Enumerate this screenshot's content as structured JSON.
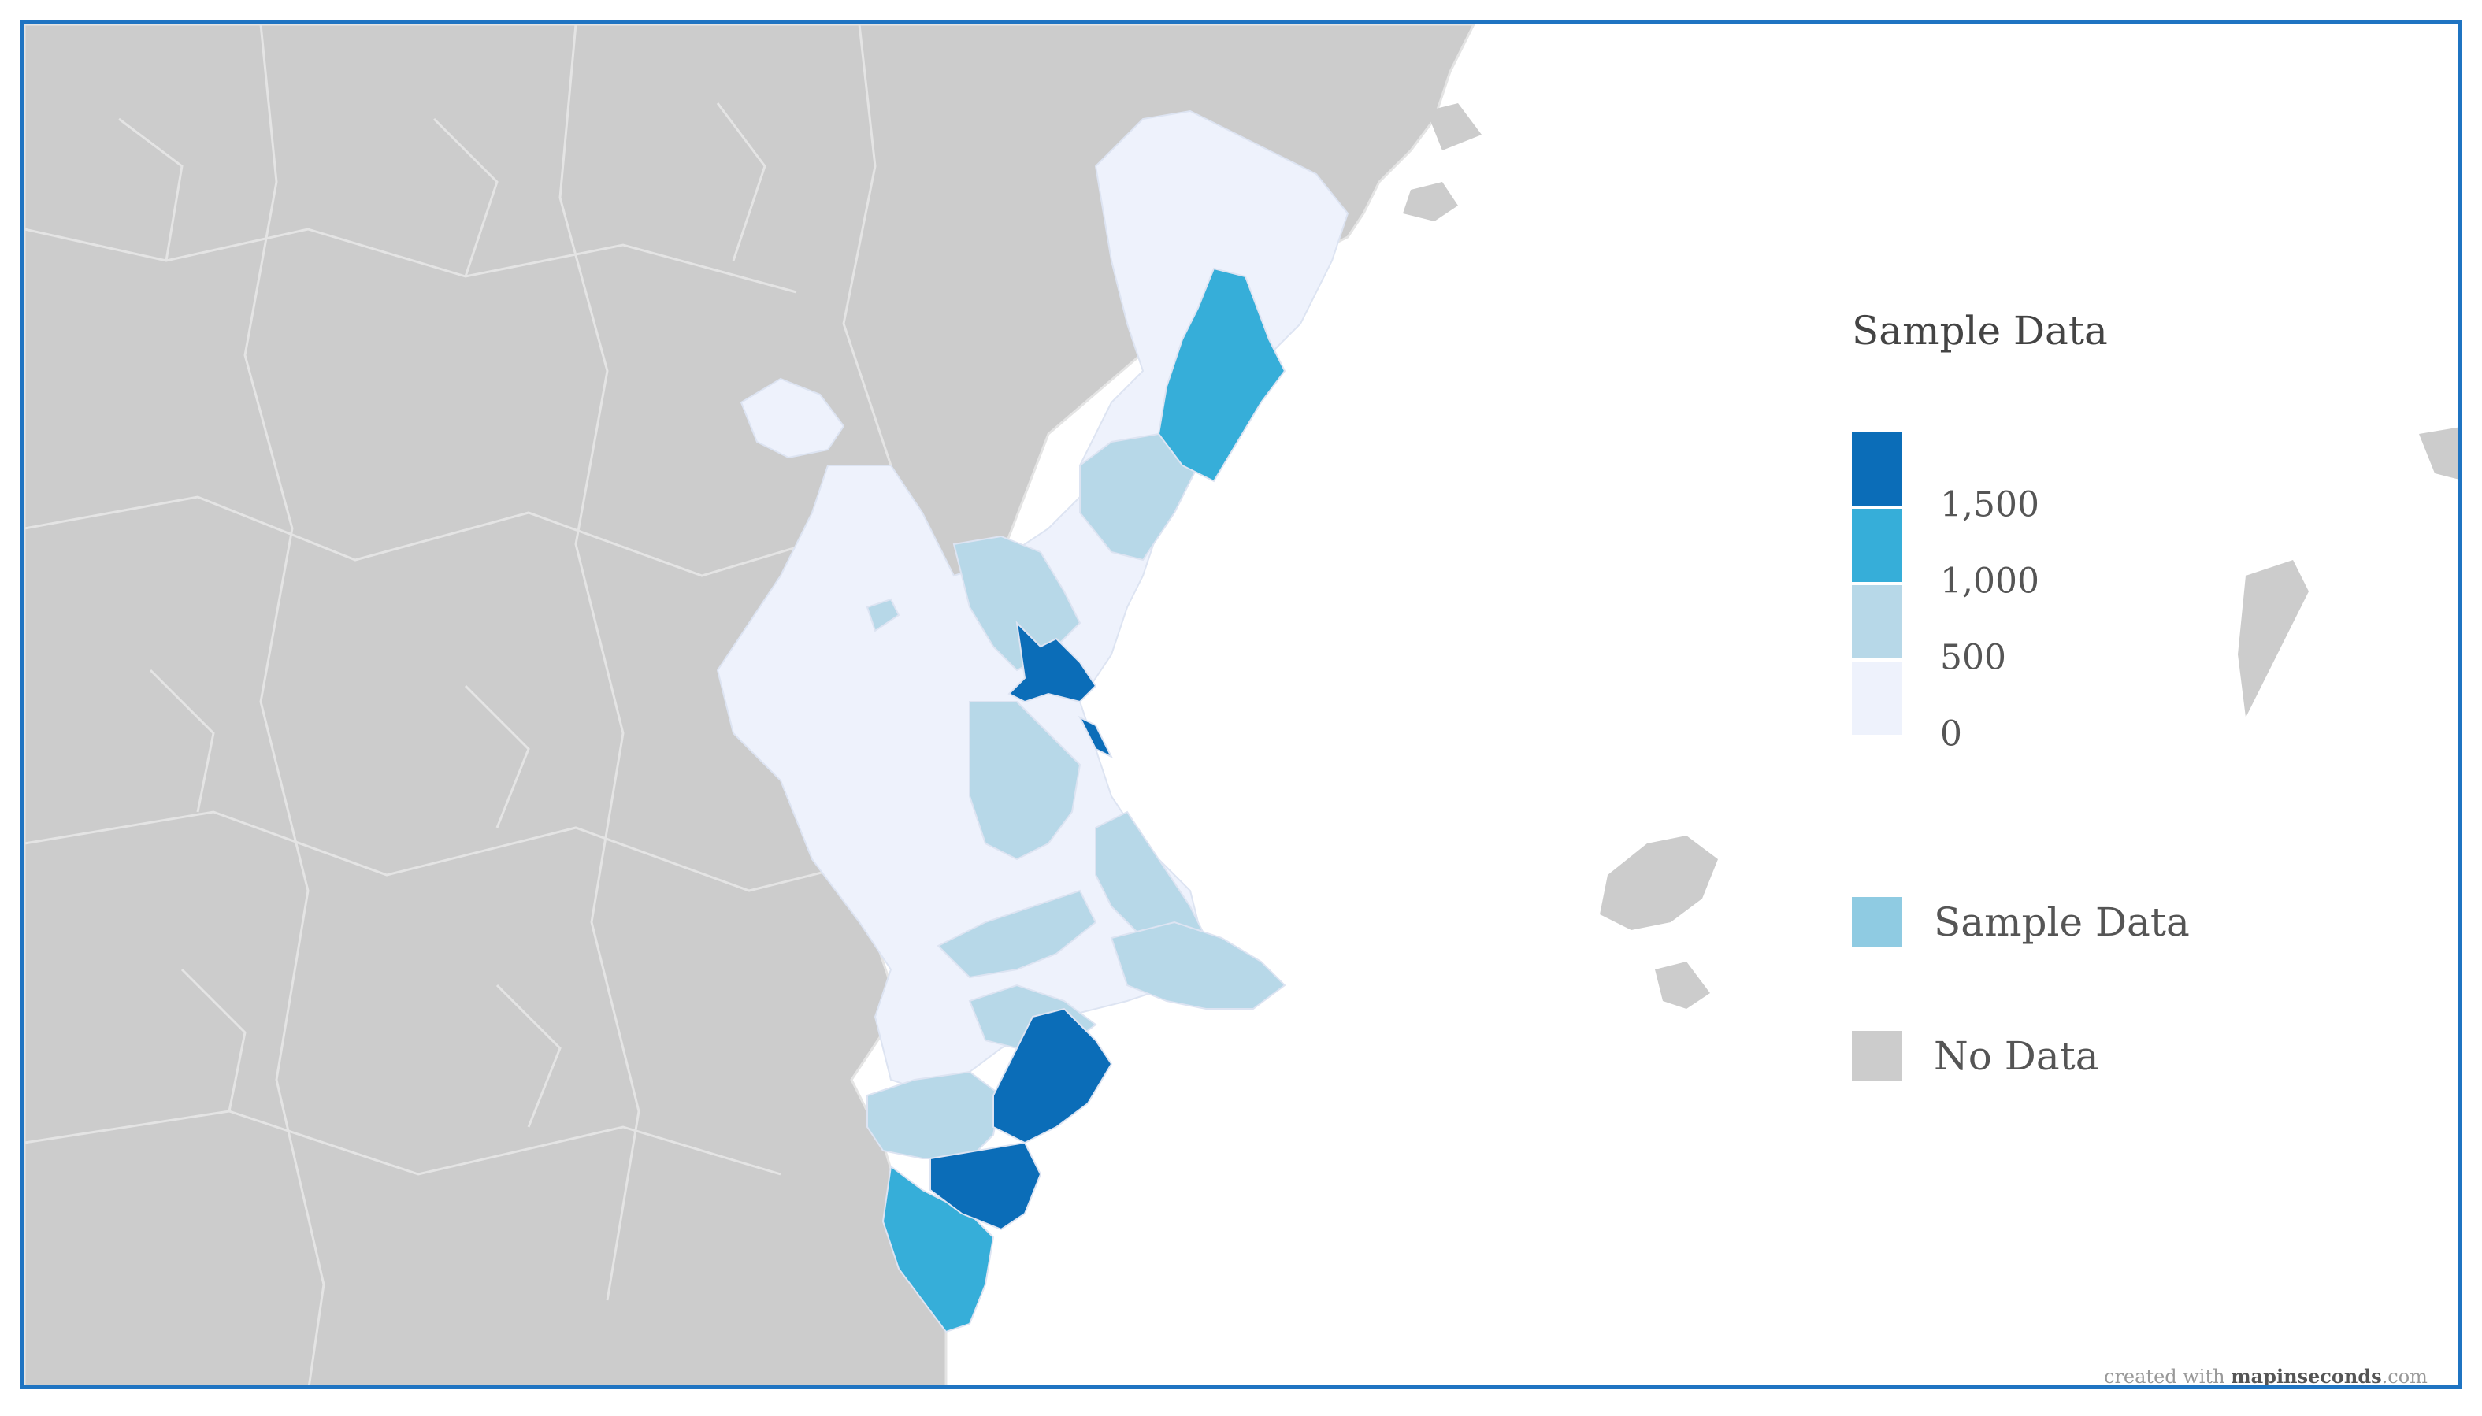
{
  "legend": {
    "title": "Sample Data",
    "scale": [
      {
        "color": "#0b6db8",
        "label": "1,500"
      },
      {
        "color": "#36aed9",
        "label": "1,000"
      },
      {
        "color": "#b7d8e8",
        "label": "500"
      },
      {
        "color": "#eef2fc",
        "label": "0"
      }
    ],
    "categories": [
      {
        "color": "#8fcbe2",
        "label": "Sample Data"
      },
      {
        "color": "#cccccc",
        "label": "No Data"
      }
    ]
  },
  "credit": {
    "prefix": "created with ",
    "brand_a": "mapinseconds",
    "suffix": ".com"
  },
  "colors": {
    "frame": "#1f74c2",
    "no_data": "#cccccc",
    "region_borders": "#e4e4e4",
    "sea": "#ffffff"
  }
}
